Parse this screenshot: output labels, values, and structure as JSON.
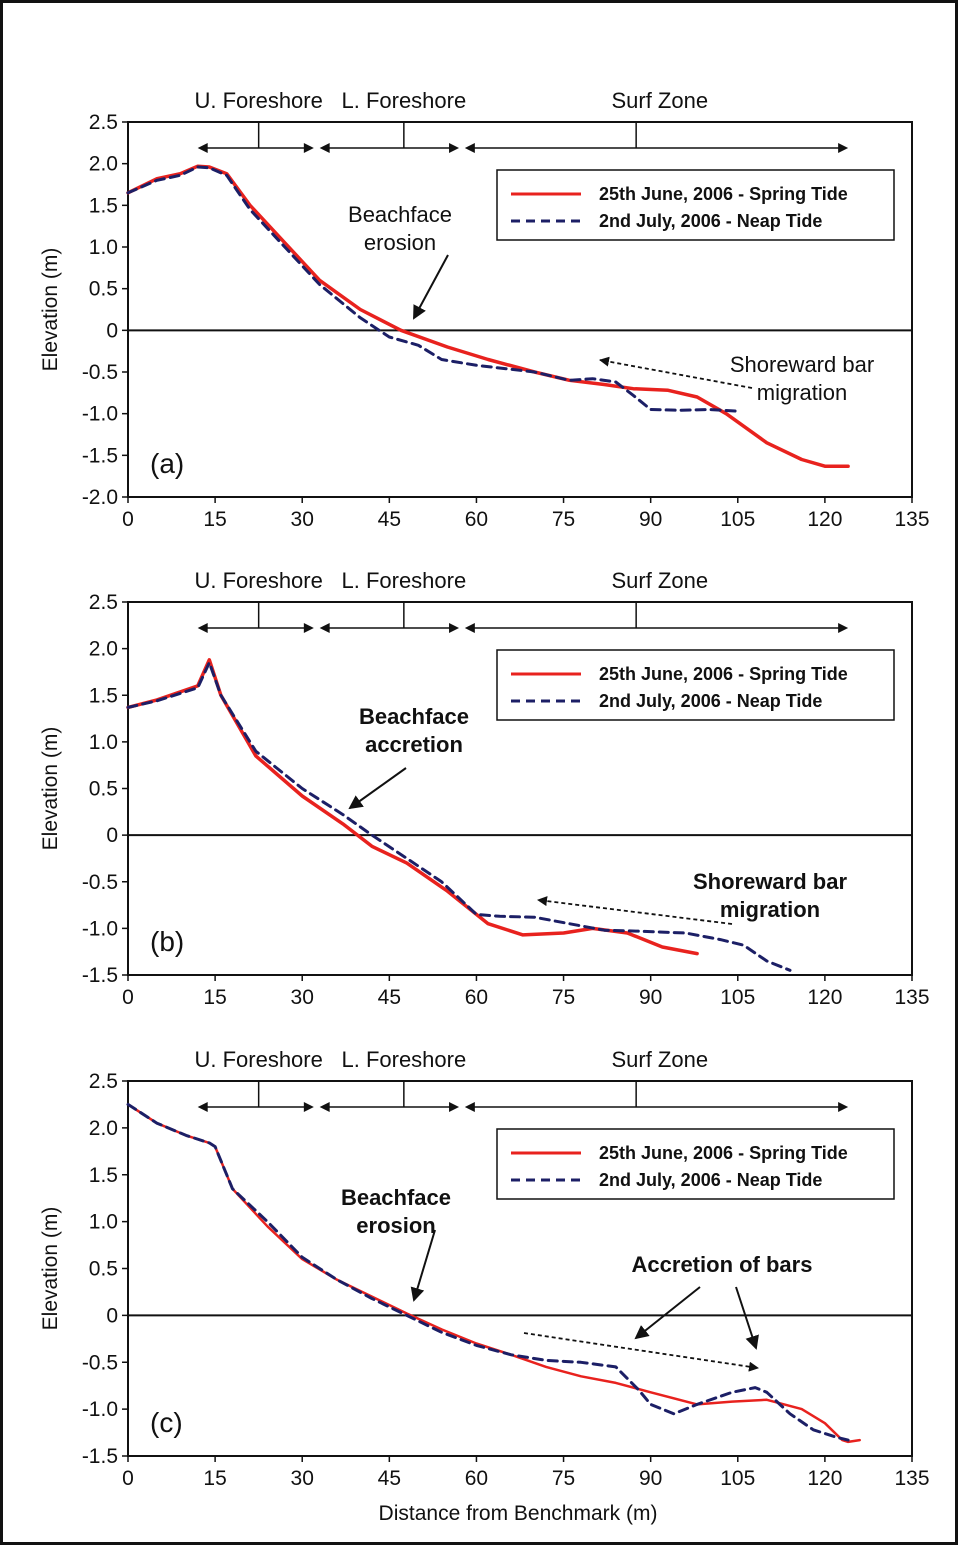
{
  "figure": {
    "xlabel": "Distance from Benchmark (m)"
  },
  "colors": {
    "spring": "#e8221e",
    "neap": "#1c1f66",
    "axes": "#111111"
  },
  "chart_data": [
    {
      "type": "line",
      "panel_label": "(a)",
      "ylabel": "Elevation (m)",
      "xlabel": "",
      "xlim": [
        0,
        135
      ],
      "ylim": [
        -2.0,
        2.5
      ],
      "xticks": [
        "0",
        "15",
        "30",
        "45",
        "60",
        "75",
        "90",
        "105",
        "120",
        "135"
      ],
      "yticks": [
        "2.5",
        "2.0",
        "1.5",
        "1.0",
        "0.5",
        "0",
        "-0.5",
        "-1.0",
        "-1.5",
        "-2.0"
      ],
      "zones": [
        "U. Foreshore",
        "L. Foreshore",
        "Surf Zone"
      ],
      "legend": {
        "placement": "top-right"
      },
      "series": [
        {
          "name": "25th June, 2006 - Spring Tide",
          "style": "solid",
          "x": [
            0,
            5,
            9,
            12,
            14,
            17,
            21,
            27,
            33,
            40,
            47,
            55,
            62,
            70,
            76,
            82,
            87,
            93,
            98,
            103,
            110,
            116,
            120,
            124
          ],
          "y": [
            1.65,
            1.82,
            1.88,
            1.97,
            1.96,
            1.88,
            1.5,
            1.05,
            0.6,
            0.25,
            0.0,
            -0.2,
            -0.35,
            -0.5,
            -0.6,
            -0.65,
            -0.7,
            -0.72,
            -0.8,
            -1.0,
            -1.35,
            -1.55,
            -1.63,
            -1.63
          ]
        },
        {
          "name": "2nd July, 2006 - Neap Tide",
          "style": "dashed",
          "x": [
            0,
            5,
            9,
            12,
            14,
            17,
            21,
            27,
            33,
            40,
            45,
            50,
            54,
            60,
            70,
            76,
            80,
            84,
            87,
            90,
            95,
            100,
            105
          ],
          "y": [
            1.65,
            1.8,
            1.86,
            1.96,
            1.95,
            1.86,
            1.45,
            1.0,
            0.55,
            0.15,
            -0.08,
            -0.18,
            -0.35,
            -0.42,
            -0.5,
            -0.6,
            -0.58,
            -0.62,
            -0.78,
            -0.95,
            -0.96,
            -0.95,
            -0.97
          ]
        }
      ],
      "annotations": [
        {
          "text": [
            "Beachface",
            "erosion"
          ],
          "bold": false
        },
        {
          "text": [
            "Shoreward bar",
            "migration"
          ],
          "bold": false
        }
      ]
    },
    {
      "type": "line",
      "panel_label": "(b)",
      "ylabel": "Elevation (m)",
      "xlabel": "",
      "xlim": [
        0,
        135
      ],
      "ylim": [
        -1.5,
        2.5
      ],
      "xticks": [
        "0",
        "15",
        "30",
        "45",
        "60",
        "75",
        "90",
        "105",
        "120",
        "135"
      ],
      "yticks": [
        "2.5",
        "2.0",
        "1.5",
        "1.0",
        "0.5",
        "0",
        "-0.5",
        "-1.0",
        "-1.5"
      ],
      "zones": [
        "U. Foreshore",
        "L. Foreshore",
        "Surf Zone"
      ],
      "legend": {
        "placement": "top-right"
      },
      "series": [
        {
          "name": "25th June, 2006 - Spring Tide",
          "style": "solid",
          "x": [
            0,
            5,
            12,
            14,
            16,
            22,
            30,
            37,
            42,
            48,
            55,
            62,
            68,
            75,
            80,
            86,
            92,
            98
          ],
          "y": [
            1.37,
            1.45,
            1.6,
            1.88,
            1.5,
            0.85,
            0.42,
            0.12,
            -0.12,
            -0.3,
            -0.6,
            -0.95,
            -1.07,
            -1.05,
            -1.0,
            -1.05,
            -1.2,
            -1.27
          ]
        },
        {
          "name": "2nd July, 2006 - Neap Tide",
          "style": "dashed",
          "x": [
            0,
            5,
            12,
            14,
            16,
            22,
            30,
            37,
            42,
            48,
            54,
            60,
            64,
            70,
            76,
            82,
            88,
            96,
            102,
            106,
            110,
            114
          ],
          "y": [
            1.37,
            1.44,
            1.58,
            1.85,
            1.5,
            0.9,
            0.5,
            0.22,
            0.0,
            -0.25,
            -0.5,
            -0.85,
            -0.87,
            -0.88,
            -0.95,
            -1.02,
            -1.03,
            -1.05,
            -1.12,
            -1.18,
            -1.35,
            -1.45
          ]
        }
      ],
      "annotations": [
        {
          "text": [
            "Beachface",
            "accretion"
          ],
          "bold": true
        },
        {
          "text": [
            "Shoreward bar",
            "migration"
          ],
          "bold": true
        }
      ]
    },
    {
      "type": "line",
      "panel_label": "(c)",
      "ylabel": "Elevation (m)",
      "xlabel": "Distance from Benchmark (m)",
      "xlim": [
        0,
        135
      ],
      "ylim": [
        -1.5,
        2.5
      ],
      "xticks": [
        "0",
        "15",
        "30",
        "45",
        "60",
        "75",
        "90",
        "105",
        "120",
        "135"
      ],
      "yticks": [
        "2.5",
        "2.0",
        "1.5",
        "1.0",
        "0.5",
        "0",
        "-0.5",
        "-1.0",
        "-1.5"
      ],
      "zones": [
        "U. Foreshore",
        "L. Foreshore",
        "Surf Zone"
      ],
      "legend": {
        "placement": "top-right"
      },
      "series": [
        {
          "name": "25th June, 2006 - Spring Tide",
          "style": "solid",
          "x": [
            0,
            5,
            10,
            14,
            15,
            18,
            24,
            30,
            36,
            42,
            48,
            54,
            60,
            66,
            72,
            78,
            84,
            90,
            98,
            104,
            110,
            116,
            120,
            123,
            124,
            126
          ],
          "y": [
            2.25,
            2.05,
            1.92,
            1.84,
            1.8,
            1.35,
            0.95,
            0.6,
            0.38,
            0.2,
            0.02,
            -0.15,
            -0.3,
            -0.42,
            -0.55,
            -0.65,
            -0.72,
            -0.82,
            -0.95,
            -0.92,
            -0.9,
            -1.0,
            -1.15,
            -1.33,
            -1.35,
            -1.33
          ]
        },
        {
          "name": "2nd July, 2006 - Neap Tide",
          "style": "dashed",
          "x": [
            0,
            5,
            10,
            14,
            15,
            18,
            24,
            30,
            36,
            42,
            48,
            54,
            60,
            66,
            72,
            78,
            84,
            88,
            90,
            94,
            98,
            104,
            108,
            110,
            114,
            118,
            122,
            124
          ],
          "y": [
            2.25,
            2.05,
            1.92,
            1.84,
            1.8,
            1.35,
            1.0,
            0.62,
            0.38,
            0.18,
            0.0,
            -0.18,
            -0.32,
            -0.42,
            -0.48,
            -0.5,
            -0.55,
            -0.8,
            -0.95,
            -1.05,
            -0.95,
            -0.82,
            -0.77,
            -0.82,
            -1.05,
            -1.22,
            -1.3,
            -1.33
          ]
        }
      ],
      "annotations": [
        {
          "text": [
            "Beachface",
            "erosion"
          ],
          "bold": true
        },
        {
          "text": [
            "Accretion of bars"
          ],
          "bold": true
        }
      ]
    }
  ]
}
